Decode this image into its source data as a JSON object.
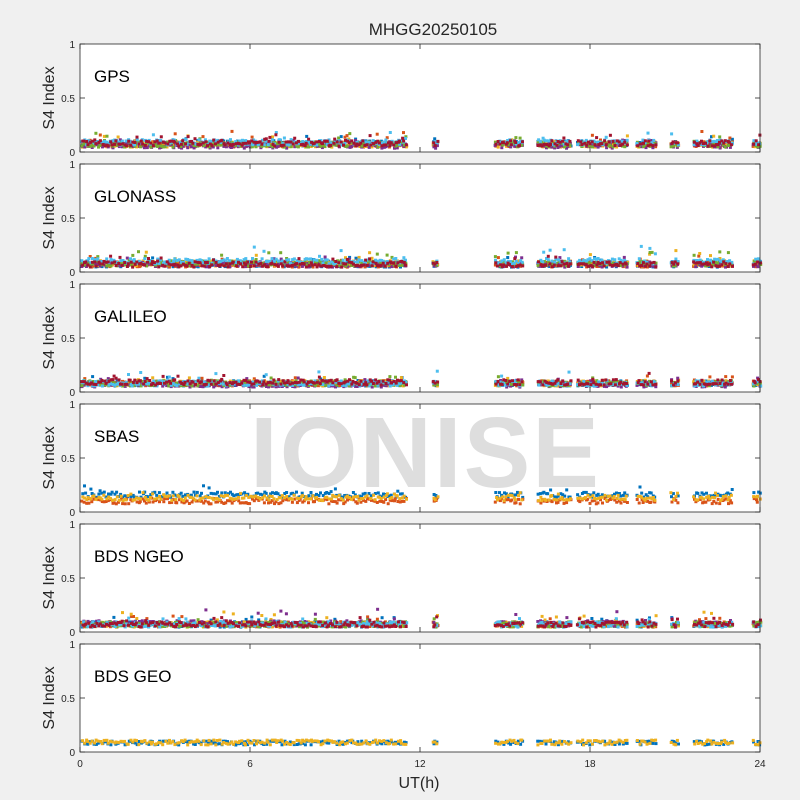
{
  "figure": {
    "title": "MHGG20250105",
    "xlabel": "UT(h)",
    "xticks": [
      "0",
      "6",
      "12",
      "18",
      "24"
    ],
    "watermark": "IONISE"
  },
  "chart_data": [
    {
      "type": "scatter",
      "name": "GPS",
      "ylabel": "S4 Index",
      "ylim": [
        0,
        1
      ],
      "xlim": [
        0,
        24
      ],
      "yticks": [
        "0",
        "0.5",
        "1"
      ],
      "grid": false,
      "coverage_hours": [
        [
          0,
          11.5
        ],
        [
          12.4,
          12.6
        ],
        [
          14.6,
          15.6
        ],
        [
          16.1,
          17.3
        ],
        [
          17.5,
          19.3
        ],
        [
          19.6,
          20.3
        ],
        [
          20.8,
          21.1
        ],
        [
          21.6,
          23.0
        ],
        [
          23.7,
          24
        ]
      ],
      "series": [
        {
          "color": "#0072BD",
          "typical_s4": 0.08,
          "max_s4": 0.15
        },
        {
          "color": "#D95319",
          "typical_s4": 0.07,
          "max_s4": 0.2
        },
        {
          "color": "#EDB120",
          "typical_s4": 0.07,
          "max_s4": 0.15
        },
        {
          "color": "#7E2F8E",
          "typical_s4": 0.06,
          "max_s4": 0.12
        },
        {
          "color": "#77AC30",
          "typical_s4": 0.07,
          "max_s4": 0.18
        },
        {
          "color": "#4DBEEE",
          "typical_s4": 0.09,
          "max_s4": 0.19
        },
        {
          "color": "#A2142F",
          "typical_s4": 0.08,
          "max_s4": 0.16
        }
      ]
    },
    {
      "type": "scatter",
      "name": "GLONASS",
      "ylabel": "S4 Index",
      "ylim": [
        0,
        1
      ],
      "xlim": [
        0,
        24
      ],
      "yticks": [
        "0",
        "0.5",
        "1"
      ],
      "grid": false,
      "coverage_hours": [
        [
          0,
          11.5
        ],
        [
          12.4,
          12.6
        ],
        [
          14.6,
          15.6
        ],
        [
          16.1,
          17.3
        ],
        [
          17.5,
          19.3
        ],
        [
          19.6,
          20.3
        ],
        [
          20.8,
          21.1
        ],
        [
          21.6,
          23.0
        ],
        [
          23.7,
          24
        ]
      ],
      "series": [
        {
          "color": "#0072BD",
          "typical_s4": 0.07,
          "max_s4": 0.14
        },
        {
          "color": "#D95319",
          "typical_s4": 0.07,
          "max_s4": 0.15
        },
        {
          "color": "#EDB120",
          "typical_s4": 0.08,
          "max_s4": 0.2
        },
        {
          "color": "#7E2F8E",
          "typical_s4": 0.07,
          "max_s4": 0.14
        },
        {
          "color": "#77AC30",
          "typical_s4": 0.08,
          "max_s4": 0.19
        },
        {
          "color": "#4DBEEE",
          "typical_s4": 0.1,
          "max_s4": 0.25
        },
        {
          "color": "#A2142F",
          "typical_s4": 0.07,
          "max_s4": 0.15
        }
      ]
    },
    {
      "type": "scatter",
      "name": "GALILEO",
      "ylabel": "S4 Index",
      "ylim": [
        0,
        1
      ],
      "xlim": [
        0,
        24
      ],
      "yticks": [
        "0",
        "0.5",
        "1"
      ],
      "grid": false,
      "coverage_hours": [
        [
          0,
          11.5
        ],
        [
          12.4,
          12.6
        ],
        [
          14.6,
          15.6
        ],
        [
          16.1,
          17.3
        ],
        [
          17.5,
          19.3
        ],
        [
          19.6,
          20.3
        ],
        [
          20.8,
          21.1
        ],
        [
          21.6,
          23.0
        ],
        [
          23.7,
          24
        ]
      ],
      "series": [
        {
          "color": "#0072BD",
          "typical_s4": 0.08,
          "max_s4": 0.15
        },
        {
          "color": "#D95319",
          "typical_s4": 0.08,
          "max_s4": 0.15
        },
        {
          "color": "#EDB120",
          "typical_s4": 0.08,
          "max_s4": 0.14
        },
        {
          "color": "#7E2F8E",
          "typical_s4": 0.07,
          "max_s4": 0.13
        },
        {
          "color": "#77AC30",
          "typical_s4": 0.08,
          "max_s4": 0.15
        },
        {
          "color": "#4DBEEE",
          "typical_s4": 0.08,
          "max_s4": 0.2
        },
        {
          "color": "#A2142F",
          "typical_s4": 0.09,
          "max_s4": 0.18
        }
      ]
    },
    {
      "type": "scatter",
      "name": "SBAS",
      "ylabel": "S4 Index",
      "ylim": [
        0,
        1
      ],
      "xlim": [
        0,
        24
      ],
      "yticks": [
        "0",
        "0.5",
        "1"
      ],
      "grid": false,
      "coverage_hours": [
        [
          0,
          11.5
        ],
        [
          12.4,
          12.6
        ],
        [
          14.6,
          15.6
        ],
        [
          16.1,
          17.3
        ],
        [
          17.5,
          19.3
        ],
        [
          19.6,
          20.3
        ],
        [
          20.8,
          21.1
        ],
        [
          21.6,
          23.0
        ],
        [
          23.7,
          24
        ]
      ],
      "series": [
        {
          "color": "#0072BD",
          "typical_s4": 0.16,
          "max_s4": 0.25
        },
        {
          "color": "#D95319",
          "typical_s4": 0.1,
          "max_s4": 0.13
        },
        {
          "color": "#EDB120",
          "typical_s4": 0.13,
          "max_s4": 0.18
        }
      ]
    },
    {
      "type": "scatter",
      "name": "BDS NGEO",
      "ylabel": "S4 Index",
      "ylim": [
        0,
        1
      ],
      "xlim": [
        0,
        24
      ],
      "yticks": [
        "0",
        "0.5",
        "1"
      ],
      "grid": false,
      "coverage_hours": [
        [
          0,
          11.5
        ],
        [
          12.4,
          12.6
        ],
        [
          14.6,
          15.6
        ],
        [
          16.1,
          17.3
        ],
        [
          17.5,
          19.3
        ],
        [
          19.6,
          20.3
        ],
        [
          20.8,
          21.1
        ],
        [
          21.6,
          23.0
        ],
        [
          23.7,
          24
        ]
      ],
      "series": [
        {
          "color": "#0072BD",
          "typical_s4": 0.07,
          "max_s4": 0.14
        },
        {
          "color": "#D95319",
          "typical_s4": 0.07,
          "max_s4": 0.15
        },
        {
          "color": "#EDB120",
          "typical_s4": 0.07,
          "max_s4": 0.19
        },
        {
          "color": "#7E2F8E",
          "typical_s4": 0.08,
          "max_s4": 0.22
        },
        {
          "color": "#77AC30",
          "typical_s4": 0.07,
          "max_s4": 0.14
        },
        {
          "color": "#4DBEEE",
          "typical_s4": 0.07,
          "max_s4": 0.13
        },
        {
          "color": "#A2142F",
          "typical_s4": 0.07,
          "max_s4": 0.14
        }
      ]
    },
    {
      "type": "scatter",
      "name": "BDS GEO",
      "ylabel": "S4 Index",
      "ylim": [
        0,
        1
      ],
      "xlim": [
        0,
        24
      ],
      "yticks": [
        "0",
        "0.5",
        "1"
      ],
      "grid": false,
      "coverage_hours": [
        [
          0,
          11.5
        ],
        [
          12.4,
          12.6
        ],
        [
          14.6,
          15.6
        ],
        [
          16.1,
          17.3
        ],
        [
          17.5,
          19.3
        ],
        [
          19.6,
          20.3
        ],
        [
          20.8,
          21.1
        ],
        [
          21.6,
          23.0
        ],
        [
          23.7,
          24
        ]
      ],
      "series": [
        {
          "color": "#0072BD",
          "typical_s4": 0.09,
          "max_s4": 0.1
        },
        {
          "color": "#EDB120",
          "typical_s4": 0.09,
          "max_s4": 0.11
        }
      ]
    }
  ]
}
